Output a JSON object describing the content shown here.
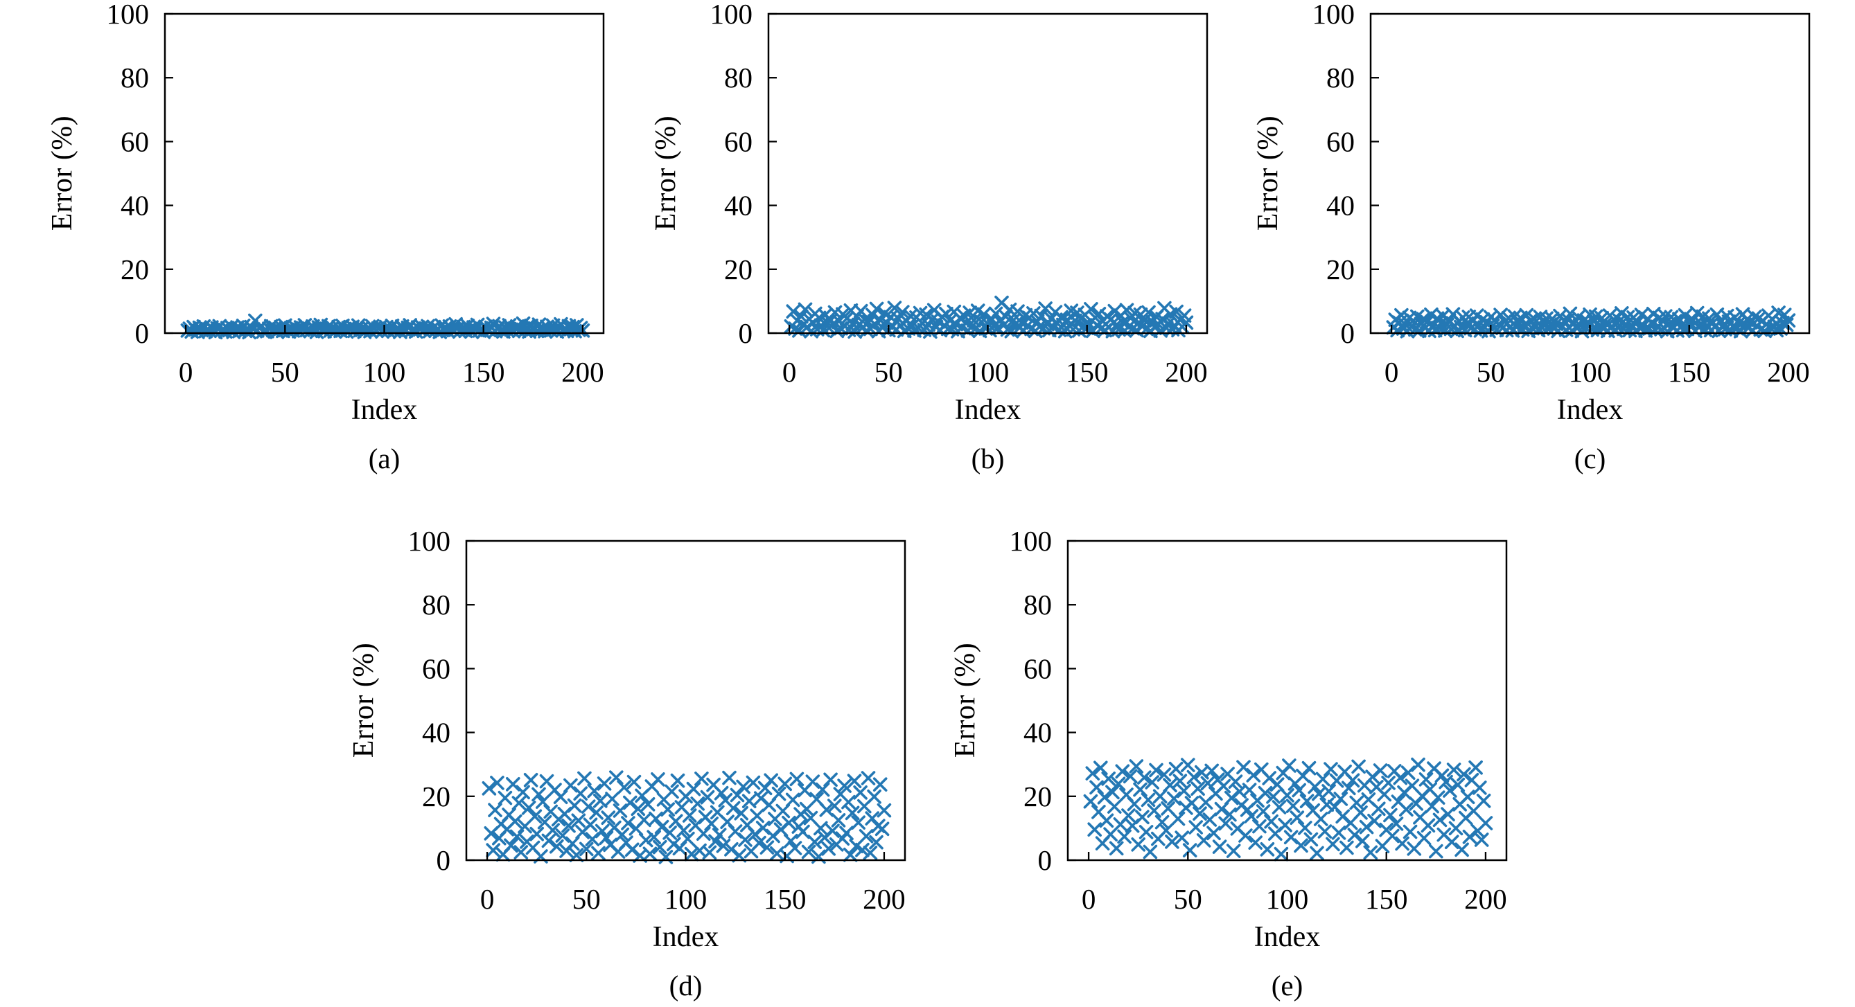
{
  "style": {
    "marker_color": "#2478b4",
    "axis_color": "#000000",
    "background": "#ffffff"
  },
  "chart_data": [
    {
      "id": "a",
      "type": "scatter",
      "caption": "(a)",
      "xlabel": "Index",
      "ylabel": "Error (%)",
      "xlim": [
        -10.5,
        210.5
      ],
      "ylim": [
        0,
        100
      ],
      "x_ticks": [
        0,
        50,
        100,
        150,
        200
      ],
      "y_ticks": [
        0,
        20,
        40,
        60,
        80,
        100
      ],
      "x_start": 1,
      "x_step": 1,
      "marker": "x",
      "y_values": [
        0.8,
        1.4,
        0.5,
        1.9,
        1.1,
        0.4,
        1.7,
        0.9,
        2.1,
        0.6,
        1.3,
        0.7,
        1.8,
        1.0,
        0.3,
        1.5,
        2.2,
        0.8,
        1.2,
        0.5,
        1.6,
        0.9,
        2.0,
        0.4,
        1.3,
        1.8,
        0.6,
        1.1,
        2.3,
        0.7,
        1.5,
        0.3,
        1.9,
        1.2,
        3.9,
        0.8,
        1.6,
        2.1,
        0.5,
        1.0,
        0.6,
        1.4,
        2.2,
        0.9,
        1.7,
        0.4,
        1.2,
        1.9,
        0.7,
        2.4,
        1.1,
        0.5,
        1.6,
        0.8,
        2.0,
        1.3,
        0.6,
        1.8,
        1.0,
        2.5,
        0.9,
        1.5,
        0.7,
        2.1,
        1.2,
        0.4,
        1.8,
        2.6,
        1.0,
        0.6,
        1.4,
        2.2,
        0.8,
        1.7,
        0.5,
        1.1,
        1.9,
        0.7,
        2.3,
        1.3,
        0.5,
        1.6,
        1.0,
        2.0,
        0.7,
        1.3,
        2.4,
        0.9,
        1.7,
        0.4,
        1.1,
        1.8,
        0.6,
        2.2,
        1.4,
        0.8,
        1.5,
        2.0,
        0.5,
        1.2,
        1.9,
        0.7,
        1.4,
        2.3,
        0.6,
        1.0,
        1.6,
        0.4,
        2.1,
        1.2,
        0.8,
        1.7,
        2.5,
        0.9,
        1.3,
        0.5,
        1.8,
        1.1,
        2.0,
        0.7,
        1.5,
        2.2,
        0.6,
        1.2,
        1.9,
        0.8,
        1.4,
        0.4,
        2.4,
        1.0,
        1.7,
        0.6,
        2.1,
        1.3,
        0.9,
        2.8,
        1.6,
        0.5,
        1.1,
        1.9,
        0.7,
        2.3,
        1.2,
        0.5,
        1.8,
        1.0,
        2.6,
        0.8,
        1.5,
        0.4,
        2.0,
        1.3,
        0.9,
        1.7,
        2.9,
        0.6,
        1.4,
        2.2,
        1.0,
        0.5,
        1.8,
        0.9,
        2.5,
        1.1,
        0.6,
        1.6,
        2.1,
        0.7,
        1.3,
        3.0,
        0.8,
        1.9,
        0.5,
        2.3,
        1.2,
        1.5,
        0.7,
        2.7,
        1.0,
        1.7,
        0.6,
        2.0,
        1.3,
        0.8,
        2.4,
        1.1,
        0.5,
        1.8,
        2.8,
        0.9,
        1.5,
        0.7,
        2.2,
        1.2,
        1.9,
        0.6,
        2.5,
        1.0,
        1.6,
        0.8
      ]
    },
    {
      "id": "b",
      "type": "scatter",
      "caption": "(b)",
      "xlabel": "Index",
      "ylabel": "Error (%)",
      "xlim": [
        -10.5,
        210.5
      ],
      "ylim": [
        0,
        100
      ],
      "x_ticks": [
        0,
        50,
        100,
        150,
        200
      ],
      "y_ticks": [
        0,
        20,
        40,
        60,
        80,
        100
      ],
      "x_start": 1,
      "x_step": 1,
      "marker": "x",
      "y_values": [
        2.1,
        6.8,
        1.4,
        3.9,
        0.8,
        5.2,
        2.7,
        7.4,
        1.9,
        4.4,
        0.6,
        3.2,
        6.1,
        1.2,
        4.8,
        2.4,
        0.9,
        5.6,
        3.5,
        1.6,
        4.1,
        2.8,
        6.5,
        0.7,
        3.7,
        1.5,
        5.9,
        2.2,
        4.6,
        1.0,
        7.1,
        3.0,
        0.5,
        5.3,
        2.6,
        6.9,
        1.8,
        4.2,
        0.8,
        3.4,
        1.3,
        5.7,
        2.9,
        7.6,
        0.6,
        4.0,
        1.7,
        6.2,
        3.3,
        0.9,
        5.0,
        2.0,
        7.9,
        1.1,
        4.5,
        2.5,
        6.6,
        0.7,
        3.8,
        1.4,
        5.4,
        2.3,
        0.8,
        4.9,
        1.6,
        6.3,
        3.1,
        1.0,
        5.8,
        2.7,
        0.5,
        4.3,
        7.2,
        1.9,
        3.6,
        0.9,
        5.1,
        2.4,
        6.0,
        1.3,
        3.9,
        1.2,
        6.7,
        2.8,
        0.6,
        4.7,
        1.8,
        5.5,
        3.2,
        0.8,
        6.4,
        2.1,
        4.0,
        1.5,
        7.0,
        0.7,
        3.5,
        5.9,
        1.4,
        2.9,
        0.9,
        4.4,
        2.2,
        6.1,
        1.6,
        3.8,
        9.5,
        2.5,
        5.2,
        1.1,
        7.3,
        0.6,
        4.1,
        2.9,
        6.8,
        1.7,
        3.3,
        0.8,
        5.6,
        2.3,
        4.8,
        1.3,
        6.2,
        0.7,
        3.6,
        2.0,
        5.4,
        1.5,
        7.7,
        2.8,
        0.9,
        4.5,
        1.9,
        6.6,
        3.1,
        1.0,
        5.0,
        2.6,
        0.6,
        4.2,
        2.4,
        7.0,
        1.2,
        3.9,
        6.4,
        0.8,
        4.6,
        2.1,
        5.7,
        1.6,
        3.0,
        7.5,
        0.7,
        4.9,
        2.5,
        6.0,
        1.4,
        3.7,
        0.9,
        5.3,
        1.8,
        4.3,
        0.6,
        6.9,
        2.7,
        1.1,
        5.5,
        3.4,
        0.8,
        7.2,
        2.0,
        4.7,
        1.5,
        6.3,
        0.9,
        3.2,
        5.8,
        2.2,
        4.0,
        1.3,
        6.5,
        0.7,
        3.6,
        1.9,
        5.1,
        2.8,
        0.8,
        4.4,
        7.8,
        1.6,
        3.0,
        5.9,
        1.2,
        2.4,
        6.7,
        0.9,
        4.1,
        2.0,
        5.5,
        3.3
      ]
    },
    {
      "id": "c",
      "type": "scatter",
      "caption": "(c)",
      "xlabel": "Index",
      "ylabel": "Error (%)",
      "xlim": [
        -10.5,
        210.5
      ],
      "ylim": [
        0,
        100
      ],
      "x_ticks": [
        0,
        50,
        100,
        150,
        200
      ],
      "y_ticks": [
        0,
        20,
        40,
        60,
        80,
        100
      ],
      "x_start": 1,
      "x_step": 1,
      "marker": "x",
      "y_values": [
        1.8,
        4.2,
        0.9,
        3.3,
        5.6,
        1.4,
        2.7,
        0.6,
        4.8,
        2.1,
        3.9,
        1.1,
        5.2,
        0.8,
        2.9,
        4.4,
        1.6,
        3.5,
        0.7,
        5.8,
        2.4,
        0.9,
        4.6,
        1.7,
        3.1,
        5.4,
        0.8,
        2.6,
        4.0,
        1.3,
        5.9,
        2.2,
        0.7,
        3.7,
        1.9,
        4.9,
        0.9,
        3.0,
        5.1,
        1.5,
        3.8,
        1.2,
        5.5,
        2.5,
        0.8,
        4.3,
        1.8,
        3.4,
        0.6,
        5.0,
        2.3,
        4.1,
        1.0,
        2.8,
        5.7,
        1.6,
        3.6,
        0.9,
        4.7,
        2.0,
        0.8,
        5.3,
        1.9,
        3.2,
        4.8,
        1.1,
        2.6,
        5.6,
        0.7,
        3.9,
        1.5,
        4.4,
        2.2,
        0.9,
        5.1,
        1.7,
        3.3,
        4.6,
        1.2,
        2.7,
        4.5,
        1.4,
        2.9,
        0.7,
        5.4,
        2.0,
        3.8,
        1.0,
        4.2,
        6.1,
        0.8,
        3.1,
        1.8,
        5.0,
        2.4,
        0.6,
        4.0,
        1.6,
        3.5,
        5.8,
        1.1,
        3.6,
        5.2,
        0.9,
        2.5,
        4.7,
        1.5,
        3.0,
        0.7,
        5.5,
        2.1,
        4.3,
        0.8,
        1.9,
        3.9,
        6.2,
        1.3,
        2.8,
        5.0,
        0.9,
        2.6,
        4.9,
        0.7,
        3.4,
        1.7,
        5.7,
        2.3,
        0.8,
        4.5,
        1.4,
        3.2,
        6.0,
        0.9,
        2.0,
        4.8,
        1.2,
        3.7,
        5.3,
        0.6,
        2.9,
        5.0,
        1.6,
        3.8,
        0.8,
        4.4,
        2.2,
        0.9,
        5.6,
        1.3,
        3.5,
        2.0,
        4.1,
        0.7,
        6.3,
        1.8,
        3.0,
        5.2,
        1.0,
        2.5,
        4.6,
        0.9,
        3.3,
        1.9,
        5.8,
        0.7,
        4.0,
        2.4,
        1.2,
        5.4,
        3.6,
        0.8,
        2.1,
        4.9,
        1.5,
        3.1,
        0.6,
        5.9,
        2.7,
        4.2,
        1.7,
        3.4,
        0.8,
        5.1,
        2.3,
        4.6,
        1.1,
        3.9,
        0.7,
        2.8,
        5.5,
        1.6,
        4.3,
        2.0,
        0.9,
        6.4,
        1.4,
        3.2,
        5.7,
        2.6,
        4.0
      ]
    },
    {
      "id": "d",
      "type": "scatter",
      "caption": "(d)",
      "xlabel": "Index",
      "ylabel": "Error (%)",
      "xlim": [
        -10.5,
        210.5
      ],
      "ylim": [
        0,
        100
      ],
      "x_ticks": [
        0,
        50,
        100,
        150,
        200
      ],
      "y_ticks": [
        0,
        20,
        40,
        60,
        80,
        100
      ],
      "x_start": 1,
      "x_step": 1,
      "marker": "x",
      "y_values": [
        22.5,
        8.4,
        3.1,
        15.7,
        24.2,
        6.9,
        11.3,
        1.8,
        19.5,
        9.7,
        14.2,
        4.6,
        23.8,
        12.1,
        7.4,
        17.9,
        2.5,
        21.3,
        10.6,
        5.8,
        16.4,
        25.1,
        3.9,
        13.7,
        8.2,
        20.6,
        1.2,
        18.3,
        11.9,
        24.7,
        6.1,
        15.2,
        9.4,
        22.0,
        4.3,
        12.8,
        19.8,
        7.7,
        14.5,
        2.9,
        10.8,
        23.4,
        5.2,
        17.1,
        1.6,
        12.4,
        20.9,
        8.8,
        25.6,
        3.5,
        16.8,
        11.1,
        6.6,
        21.7,
        14.9,
        2.2,
        18.6,
        9.1,
        24.0,
        7.0,
        13.3,
        4.8,
        19.2,
        10.2,
        25.9,
        2.7,
        15.5,
        8.0,
        22.8,
        5.5,
        11.6,
        18.0,
        3.3,
        24.5,
        9.9,
        16.1,
        1.4,
        20.2,
        12.6,
        6.3,
        17.5,
        2.0,
        23.1,
        7.2,
        13.0,
        25.3,
        4.1,
        10.4,
        19.0,
        1.0,
        15.9,
        8.6,
        21.5,
        5.0,
        12.2,
        24.9,
        3.7,
        16.6,
        9.3,
        20.0,
        6.7,
        14.0,
        1.9,
        22.3,
        10.9,
        17.7,
        3.0,
        25.5,
        8.3,
        13.5,
        19.7,
        2.4,
        11.4,
        23.6,
        5.9,
        15.0,
        7.9,
        21.0,
        4.5,
        18.8,
        12.0,
        25.8,
        3.4,
        16.3,
        9.0,
        20.4,
        1.5,
        14.7,
        23.0,
        6.4,
        11.0,
        18.5,
        2.8,
        24.3,
        8.1,
        13.9,
        5.4,
        19.4,
        10.1,
        22.6,
        4.0,
        17.3,
        25.0,
        7.6,
        12.9,
        2.1,
        20.8,
        9.6,
        15.4,
        23.9,
        1.3,
        11.7,
        6.0,
        18.9,
        3.8,
        25.4,
        10.5,
        14.4,
        8.9,
        21.9,
        16.0,
        2.6,
        13.2,
        24.6,
        5.7,
        19.1,
        1.1,
        10.0,
        22.1,
        7.1,
        15.8,
        3.6,
        25.2,
        9.2,
        17.0,
        4.9,
        12.5,
        20.7,
        6.8,
        23.3,
        8.5,
        18.2,
        1.7,
        14.8,
        24.8,
        4.4,
        11.8,
        21.2,
        3.2,
        16.9,
        7.5,
        25.7,
        2.3,
        13.1,
        19.9,
        5.6,
        10.7,
        23.7,
        9.8,
        15.6
      ]
    },
    {
      "id": "e",
      "type": "scatter",
      "caption": "(e)",
      "xlabel": "Index",
      "ylabel": "Error (%)",
      "xlim": [
        -10.5,
        210.5
      ],
      "ylim": [
        0,
        100
      ],
      "x_ticks": [
        0,
        50,
        100,
        150,
        200
      ],
      "y_ticks": [
        0,
        20,
        40,
        60,
        80,
        100
      ],
      "x_start": 1,
      "x_step": 1,
      "marker": "x",
      "y_values": [
        18.4,
        27.2,
        9.6,
        22.8,
        15.1,
        28.9,
        5.3,
        19.7,
        12.4,
        25.5,
        8.1,
        21.3,
        16.8,
        3.7,
        23.9,
        11.2,
        27.8,
        7.4,
        20.5,
        14.0,
        26.3,
        10.8,
        17.6,
        29.4,
        4.9,
        22.1,
        13.5,
        25.9,
        8.8,
        18.9,
        2.6,
        24.4,
        15.5,
        28.2,
        6.7,
        20.0,
        11.9,
        26.8,
        9.3,
        16.2,
        23.5,
        5.8,
        19.3,
        28.6,
        13.0,
        24.8,
        7.0,
        21.7,
        16.4,
        29.8,
        3.1,
        17.9,
        26.0,
        10.3,
        22.4,
        14.6,
        27.5,
        6.2,
        18.1,
        24.1,
        12.7,
        28.0,
        8.5,
        20.9,
        25.2,
        4.2,
        16.0,
        23.2,
        11.5,
        27.0,
        14.3,
        19.5,
        2.9,
        24.6,
        9.9,
        21.5,
        17.2,
        29.1,
        7.7,
        15.8,
        22.0,
        13.8,
        26.6,
        5.5,
        18.7,
        10.6,
        28.4,
        15.3,
        21.0,
        3.4,
        25.7,
        12.1,
        19.9,
        8.3,
        23.7,
        16.6,
        1.9,
        27.3,
        11.0,
        20.3,
        29.6,
        7.2,
        17.0,
        24.0,
        13.3,
        21.9,
        4.6,
        26.4,
        10.1,
        18.5,
        28.8,
        6.5,
        15.6,
        23.0,
        2.2,
        20.8,
        12.9,
        25.4,
        9.0,
        17.4,
        21.6,
        28.5,
        5.0,
        16.7,
        24.9,
        8.6,
        19.2,
        13.7,
        27.7,
        3.9,
        22.6,
        11.7,
        25.0,
        7.9,
        18.0,
        29.3,
        14.9,
        6.0,
        23.4,
        10.4,
        19.0,
        2.4,
        26.1,
        12.3,
        22.9,
        16.1,
        28.1,
        4.4,
        20.6,
        9.5,
        24.2,
        14.1,
        7.6,
        27.9,
        11.4,
        18.3,
        25.8,
        5.2,
        21.2,
        15.9,
        27.4,
        8.9,
        23.3,
        3.6,
        17.7,
        29.9,
        13.4,
        20.1,
        6.9,
        25.3,
        10.9,
        22.2,
        16.9,
        28.7,
        2.8,
        19.6,
        12.6,
        26.5,
        8.0,
        24.5,
        14.4,
        21.8,
        5.7,
        28.3,
        10.0,
        23.6,
        17.5,
        3.3,
        26.9,
        13.2,
        19.8,
        7.3,
        25.1,
        15.4,
        29.0,
        9.2,
        22.7,
        6.4,
        18.6,
        11.6
      ]
    }
  ]
}
